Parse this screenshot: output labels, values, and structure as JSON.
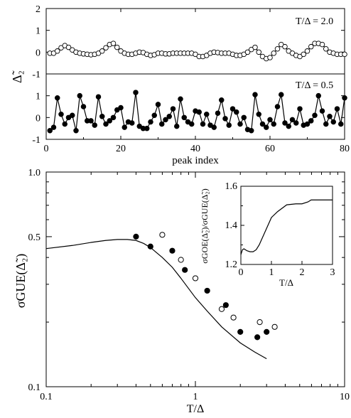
{
  "chart_data": [
    {
      "type": "line",
      "annotation": "T/Δ = 2.0",
      "ylabel": "Δ̃₂",
      "xlim": [
        0,
        80
      ],
      "ylim": [
        -1,
        2
      ],
      "yticks": [
        -1,
        0,
        1,
        2
      ],
      "marker": "open-circle",
      "x": [
        1,
        2,
        3,
        4,
        5,
        6,
        7,
        8,
        9,
        10,
        11,
        12,
        13,
        14,
        15,
        16,
        17,
        18,
        19,
        20,
        21,
        22,
        23,
        24,
        25,
        26,
        27,
        28,
        29,
        30,
        31,
        32,
        33,
        34,
        35,
        36,
        37,
        38,
        39,
        40,
        41,
        42,
        43,
        44,
        45,
        46,
        47,
        48,
        49,
        50,
        51,
        52,
        53,
        54,
        55,
        56,
        57,
        58,
        59,
        60,
        61,
        62,
        63,
        64,
        65,
        66,
        67,
        68,
        69,
        70,
        71,
        72,
        73,
        74,
        75,
        76,
        77,
        78,
        79,
        80
      ],
      "y": [
        -0.05,
        -0.05,
        0.05,
        0.2,
        0.3,
        0.22,
        0.1,
        0.0,
        -0.05,
        -0.08,
        -0.1,
        -0.12,
        -0.1,
        -0.05,
        0.05,
        0.2,
        0.35,
        0.4,
        0.22,
        0.05,
        -0.05,
        -0.1,
        -0.1,
        -0.05,
        0.0,
        -0.02,
        -0.1,
        -0.15,
        -0.12,
        -0.05,
        -0.05,
        -0.08,
        -0.08,
        -0.05,
        -0.05,
        -0.05,
        -0.05,
        -0.05,
        -0.05,
        -0.1,
        -0.2,
        -0.2,
        -0.15,
        -0.05,
        0.0,
        -0.02,
        -0.05,
        -0.05,
        -0.05,
        -0.1,
        -0.15,
        -0.15,
        -0.1,
        0.0,
        0.12,
        0.22,
        0.0,
        -0.2,
        -0.3,
        -0.25,
        -0.05,
        0.15,
        0.35,
        0.25,
        0.05,
        -0.05,
        -0.15,
        -0.2,
        -0.1,
        0.05,
        0.25,
        0.4,
        0.4,
        0.35,
        0.15,
        0.0,
        -0.05,
        -0.1,
        -0.1,
        -0.1
      ]
    },
    {
      "type": "line",
      "annotation": "T/Δ = 0.5",
      "xlabel": "peak index",
      "xlim": [
        0,
        80
      ],
      "ylim": [
        -1,
        2
      ],
      "xticks": [
        0,
        20,
        40,
        60,
        80
      ],
      "yticks": [
        -1,
        0,
        1
      ],
      "marker": "filled-circle",
      "x": [
        1,
        2,
        3,
        4,
        5,
        6,
        7,
        8,
        9,
        10,
        11,
        12,
        13,
        14,
        15,
        16,
        17,
        18,
        19,
        20,
        21,
        22,
        23,
        24,
        25,
        26,
        27,
        28,
        29,
        30,
        31,
        32,
        33,
        34,
        35,
        36,
        37,
        38,
        39,
        40,
        41,
        42,
        43,
        44,
        45,
        46,
        47,
        48,
        49,
        50,
        51,
        52,
        53,
        54,
        55,
        56,
        57,
        58,
        59,
        60,
        61,
        62,
        63,
        64,
        65,
        66,
        67,
        68,
        69,
        70,
        71,
        72,
        73,
        74,
        75,
        76,
        77,
        78,
        79,
        80
      ],
      "y": [
        -0.6,
        -0.45,
        0.9,
        0.15,
        -0.3,
        0.0,
        0.1,
        -0.6,
        1.0,
        0.5,
        -0.15,
        -0.15,
        -0.35,
        0.95,
        0.05,
        -0.3,
        -0.15,
        0.0,
        0.35,
        0.45,
        -0.45,
        -0.2,
        -0.25,
        1.15,
        -0.4,
        -0.5,
        -0.5,
        -0.2,
        0.1,
        0.6,
        -0.3,
        -0.1,
        0.05,
        0.4,
        -0.4,
        0.85,
        0.0,
        -0.2,
        -0.3,
        0.3,
        0.25,
        -0.3,
        0.15,
        -0.35,
        -0.45,
        0.2,
        0.8,
        -0.05,
        -0.35,
        0.4,
        0.25,
        -0.3,
        0.0,
        -0.55,
        -0.6,
        1.05,
        0.15,
        -0.3,
        -0.45,
        -0.1,
        -0.3,
        0.5,
        1.05,
        -0.25,
        -0.4,
        -0.1,
        -0.25,
        0.4,
        -0.35,
        -0.3,
        -0.15,
        0.1,
        1.0,
        0.3,
        -0.3,
        0.05,
        -0.2,
        0.4,
        -0.3,
        0.9
      ]
    },
    {
      "type": "scatter",
      "xlabel": "T/Δ",
      "ylabel": "σGUE(Δ̃₂)",
      "x_scale": "log",
      "y_scale": "log",
      "xlim": [
        0.1,
        10
      ],
      "ylim": [
        0.1,
        1.0
      ],
      "xticks": [
        "0.1",
        "1",
        "10"
      ],
      "yticks": [
        "0.1",
        "0.5",
        "1.0"
      ],
      "series": [
        {
          "kind": "line",
          "x": [
            0.1,
            0.15,
            0.2,
            0.25,
            0.3,
            0.35,
            0.4,
            0.45,
            0.5,
            0.6,
            0.7,
            0.8,
            1.0,
            1.2,
            1.5,
            2.0,
            2.5,
            3.0
          ],
          "y": [
            0.44,
            0.455,
            0.47,
            0.48,
            0.485,
            0.485,
            0.48,
            0.465,
            0.445,
            0.4,
            0.36,
            0.32,
            0.26,
            0.225,
            0.19,
            0.16,
            0.145,
            0.135
          ]
        },
        {
          "kind": "filled-circle",
          "x": [
            0.4,
            0.5,
            0.7,
            0.85,
            1.2,
            1.6,
            2.0,
            2.6,
            3.0
          ],
          "y": [
            0.5,
            0.45,
            0.43,
            0.35,
            0.28,
            0.24,
            0.18,
            0.17,
            0.18
          ]
        },
        {
          "kind": "open-circle",
          "x": [
            0.6,
            0.8,
            1.0,
            1.5,
            1.8,
            2.7,
            3.4
          ],
          "y": [
            0.51,
            0.39,
            0.32,
            0.23,
            0.21,
            0.2,
            0.19
          ]
        }
      ]
    },
    {
      "type": "line",
      "inset": true,
      "xlabel": "T/Δ",
      "ylabel": "σGOE(Δ̃₂)/σGUE(Δ̃₂)",
      "xlim": [
        0,
        3
      ],
      "ylim": [
        1.2,
        1.6
      ],
      "xticks": [
        0,
        1,
        2,
        3
      ],
      "yticks": [
        "1.2",
        "1.4",
        "1.6"
      ],
      "x": [
        0.0,
        0.05,
        0.1,
        0.15,
        0.2,
        0.3,
        0.4,
        0.5,
        0.6,
        0.8,
        1.0,
        1.2,
        1.5,
        1.8,
        2.0,
        2.2,
        2.3,
        2.5,
        3.0
      ],
      "y": [
        1.25,
        1.275,
        1.28,
        1.275,
        1.27,
        1.265,
        1.265,
        1.275,
        1.3,
        1.37,
        1.44,
        1.47,
        1.505,
        1.51,
        1.51,
        1.52,
        1.53,
        1.53,
        1.53
      ]
    }
  ]
}
